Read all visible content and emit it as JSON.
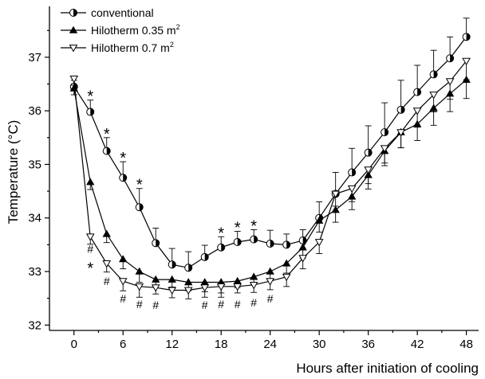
{
  "chart_data": {
    "type": "line",
    "xlabel": "Hours after initiation of cooling",
    "ylabel": "Temperature (°C)",
    "xlim": [
      -3,
      49.5
    ],
    "ylim": [
      31.9,
      37.95
    ],
    "x_ticks": [
      0,
      6,
      12,
      18,
      24,
      30,
      36,
      42,
      48
    ],
    "y_ticks": [
      32,
      33,
      34,
      35,
      36,
      37
    ],
    "legend_position": "top-left",
    "x": [
      0,
      2,
      4,
      6,
      8,
      10,
      12,
      14,
      16,
      18,
      20,
      22,
      24,
      26,
      28,
      30,
      32,
      34,
      36,
      38,
      40,
      42,
      44,
      46,
      48
    ],
    "series": [
      {
        "name": "conventional",
        "name_parts": {
          "text": "conventional"
        },
        "marker": "half-circle",
        "values": [
          36.45,
          35.98,
          35.25,
          34.75,
          34.2,
          33.53,
          33.13,
          33.07,
          33.27,
          33.45,
          33.55,
          33.6,
          33.52,
          33.5,
          33.58,
          34.0,
          34.45,
          34.85,
          35.22,
          35.6,
          36.02,
          36.35,
          36.68,
          36.98,
          37.38
        ],
        "errors": [
          0.12,
          0.22,
          0.25,
          0.3,
          0.35,
          0.28,
          0.3,
          0.3,
          0.22,
          0.2,
          0.2,
          0.18,
          0.25,
          0.2,
          0.2,
          0.3,
          0.4,
          0.45,
          0.5,
          0.55,
          0.55,
          0.5,
          0.45,
          0.4,
          0.35
        ]
      },
      {
        "name": "Hilotherm 0.35 m2",
        "name_parts": {
          "text": "Hilotherm 0.35 m",
          "sup": "2"
        },
        "marker": "triangle-up",
        "values": [
          36.42,
          34.67,
          33.7,
          33.23,
          33.0,
          32.85,
          32.85,
          32.8,
          32.8,
          32.8,
          32.82,
          32.9,
          33.0,
          33.15,
          33.45,
          33.95,
          34.15,
          34.4,
          34.8,
          35.25,
          35.6,
          35.75,
          36.05,
          36.32,
          36.58
        ]
      },
      {
        "name": "Hilotherm 0.7 m2",
        "name_parts": {
          "text": "Hilotherm 0.7 m",
          "sup": "2"
        },
        "marker": "triangle-down",
        "values": [
          36.6,
          33.65,
          33.15,
          32.82,
          32.72,
          32.7,
          32.65,
          32.65,
          32.7,
          32.72,
          32.72,
          32.75,
          32.82,
          32.9,
          33.25,
          33.55,
          34.45,
          34.55,
          34.9,
          35.3,
          35.6,
          36.0,
          36.3,
          36.55,
          36.93
        ]
      }
    ],
    "annotations": {
      "star": {
        "text": "*",
        "x": [
          2,
          4,
          6,
          8,
          18,
          20,
          22,
          2
        ]
      },
      "hash": {
        "text": "#",
        "x": [
          2,
          4,
          6,
          8,
          10,
          16,
          18,
          20,
          22,
          24
        ]
      }
    }
  }
}
